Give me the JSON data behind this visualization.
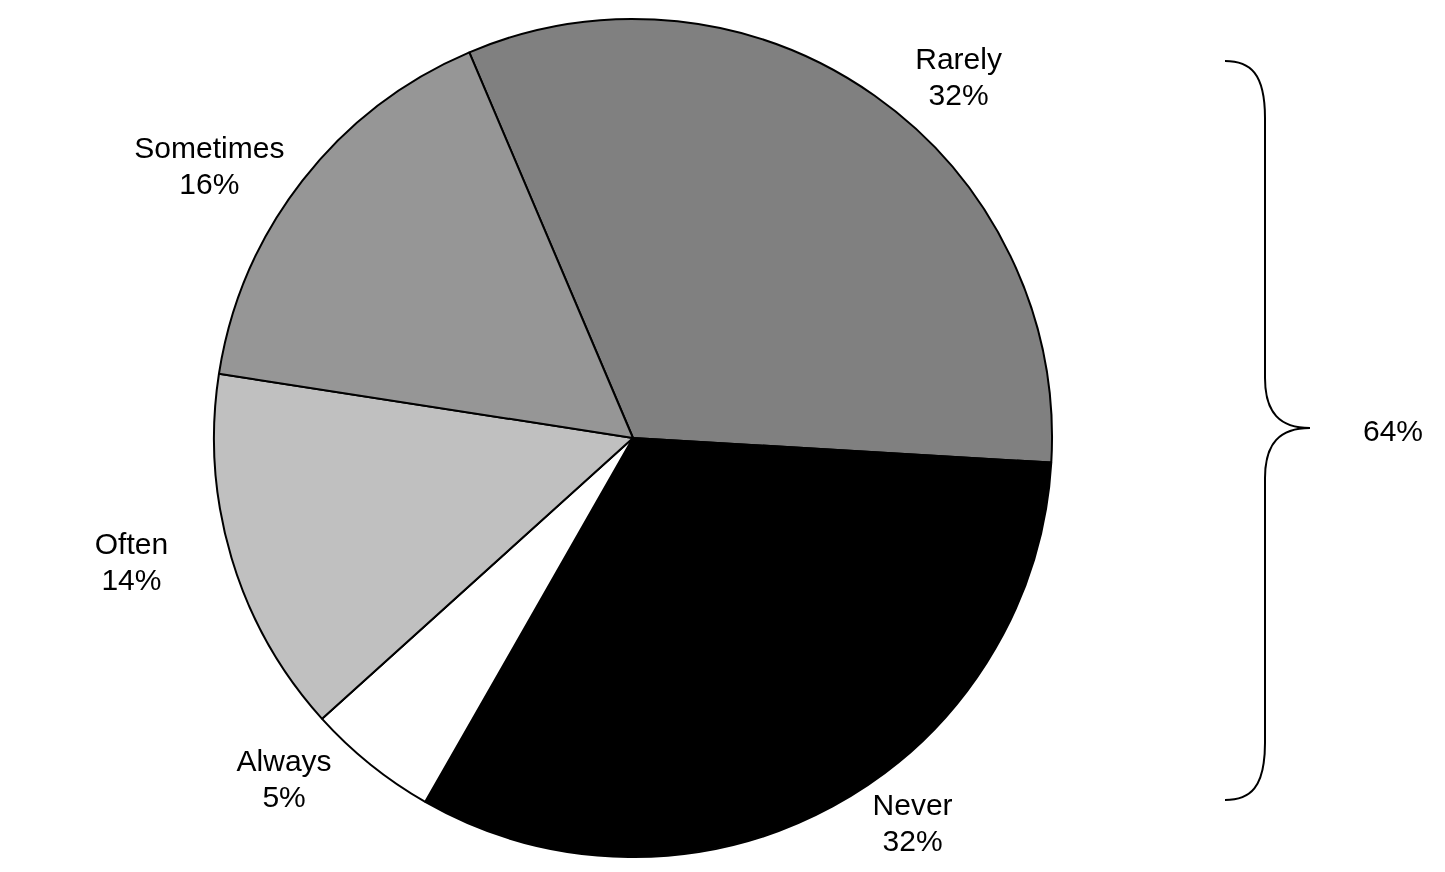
{
  "chart_data": {
    "type": "pie",
    "categories": [
      "Rarely",
      "Never",
      "Always",
      "Often",
      "Sometimes"
    ],
    "values": [
      32,
      32,
      5,
      14,
      16
    ],
    "value_labels": [
      "32%",
      "32%",
      "5%",
      "14%",
      "16%"
    ],
    "colors": [
      "#808080",
      "#000000",
      "#ffffff",
      "#c0c0c0",
      "#969696"
    ],
    "legend": false,
    "annotations": [
      "64%"
    ]
  }
}
